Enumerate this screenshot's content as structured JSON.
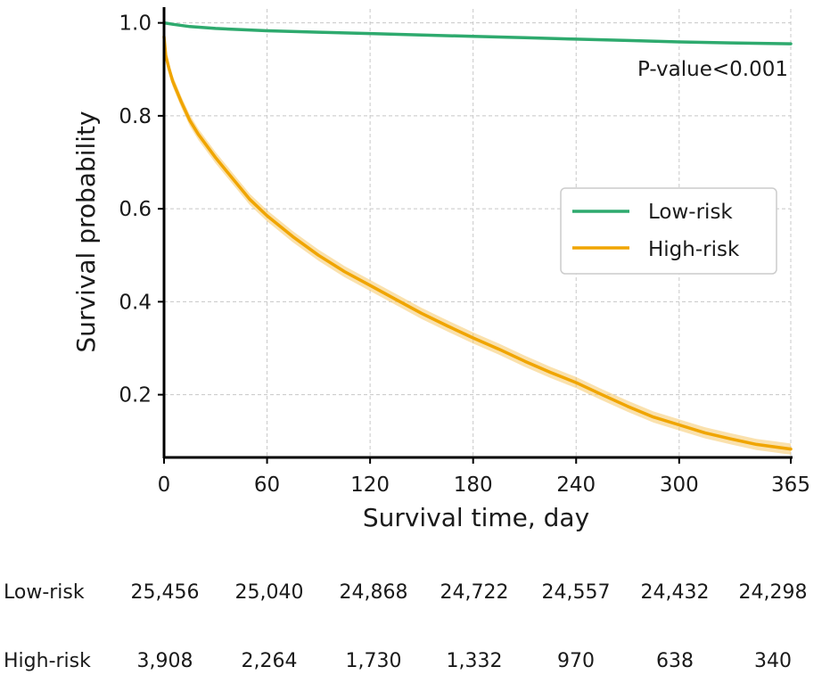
{
  "chart_data": {
    "type": "line",
    "title": "",
    "xlabel": "Survival time, day",
    "ylabel": "Survival probability",
    "xlim": [
      0,
      365
    ],
    "ylim": [
      0.065,
      1.03
    ],
    "x_ticks": [
      0,
      60,
      120,
      180,
      240,
      300,
      365
    ],
    "y_ticks": [
      0.2,
      0.4,
      0.6,
      0.8,
      1.0
    ],
    "y_tick_labels": [
      "0.2",
      "0.4",
      "0.6",
      "0.8",
      "1.0"
    ],
    "grid": true,
    "legend_position": "center-right",
    "annotation": "P-value<0.001",
    "series": [
      {
        "name": "Low-risk",
        "color": "#2eaa6e",
        "x": [
          0,
          5,
          15,
          30,
          60,
          90,
          120,
          150,
          180,
          210,
          240,
          270,
          300,
          330,
          365
        ],
        "y": [
          1.0,
          0.997,
          0.992,
          0.988,
          0.983,
          0.98,
          0.977,
          0.974,
          0.971,
          0.968,
          0.965,
          0.962,
          0.959,
          0.957,
          0.955
        ]
      },
      {
        "name": "High-risk",
        "color": "#f0a500",
        "band_color": "#f5c96a",
        "x": [
          0,
          1,
          3,
          5,
          10,
          15,
          20,
          30,
          40,
          50,
          60,
          75,
          90,
          105,
          120,
          135,
          150,
          165,
          180,
          195,
          210,
          225,
          240,
          255,
          270,
          285,
          300,
          315,
          330,
          345,
          355,
          365
        ],
        "y": [
          0.97,
          0.93,
          0.9,
          0.875,
          0.83,
          0.79,
          0.76,
          0.71,
          0.665,
          0.62,
          0.585,
          0.54,
          0.5,
          0.465,
          0.435,
          0.405,
          0.375,
          0.348,
          0.322,
          0.298,
          0.272,
          0.248,
          0.226,
          0.2,
          0.175,
          0.152,
          0.135,
          0.118,
          0.105,
          0.093,
          0.088,
          0.083
        ]
      }
    ],
    "risk_table": {
      "time_points": [
        0,
        60,
        120,
        180,
        240,
        300,
        365
      ],
      "rows": [
        {
          "label": "Low-risk",
          "counts": [
            "25,456",
            "25,040",
            "24,868",
            "24,722",
            "24,557",
            "24,432",
            "24,298"
          ]
        },
        {
          "label": "High-risk",
          "counts": [
            "3,908",
            "2,264",
            "1,730",
            "1,332",
            "970",
            "638",
            "340"
          ]
        }
      ]
    }
  }
}
